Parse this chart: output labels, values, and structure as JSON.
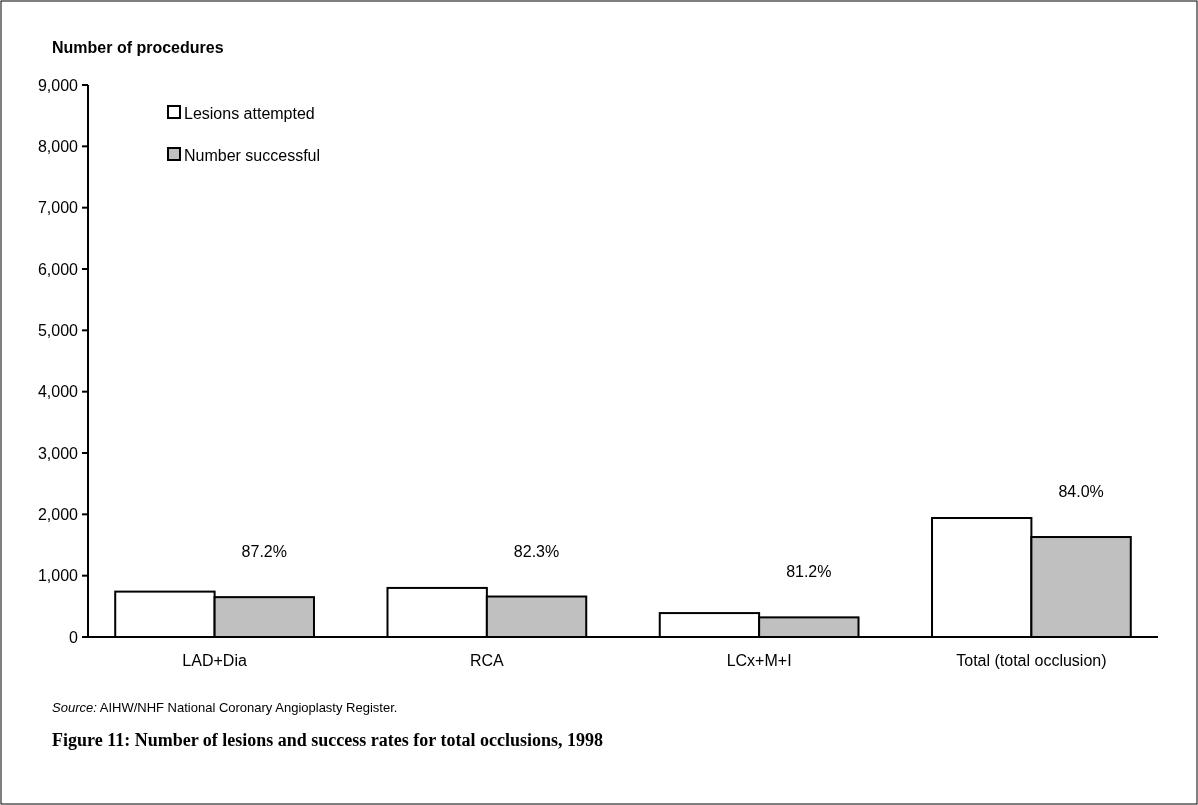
{
  "chart_data": {
    "type": "bar",
    "title": "Figure 11: Number of lesions and success rates for total occlusions, 1998",
    "ylabel": "Number of procedures",
    "categories": [
      "LAD+Dia",
      "RCA",
      "LCx+M+I",
      "Total (total occlusion)"
    ],
    "series": [
      {
        "name": "Lesions attempted",
        "color": "#ffffff",
        "values": [
          740,
          800,
          390,
          1940
        ]
      },
      {
        "name": "Number successful",
        "color": "#c0c0c0",
        "values": [
          650,
          660,
          320,
          1630
        ]
      }
    ],
    "ylim": [
      0,
      9000
    ],
    "yticks": [
      {
        "value": 0,
        "label": "0"
      },
      {
        "value": 1000,
        "label": "1,000"
      },
      {
        "value": 2000,
        "label": "2,000"
      },
      {
        "value": 3000,
        "label": "3,000"
      },
      {
        "value": 4000,
        "label": "4,000"
      },
      {
        "value": 5000,
        "label": "5,000"
      },
      {
        "value": 6000,
        "label": "6,000"
      },
      {
        "value": 7000,
        "label": "7,000"
      },
      {
        "value": 8000,
        "label": "8,000"
      },
      {
        "value": 9000,
        "label": "9,000"
      }
    ],
    "grid": false,
    "legend": "top left",
    "annotations": [
      "87.2%",
      "82.3%",
      "81.2%",
      "84.0%",
      "Source: AIHW/NHF National Coronary Angioplasty Register."
    ]
  }
}
